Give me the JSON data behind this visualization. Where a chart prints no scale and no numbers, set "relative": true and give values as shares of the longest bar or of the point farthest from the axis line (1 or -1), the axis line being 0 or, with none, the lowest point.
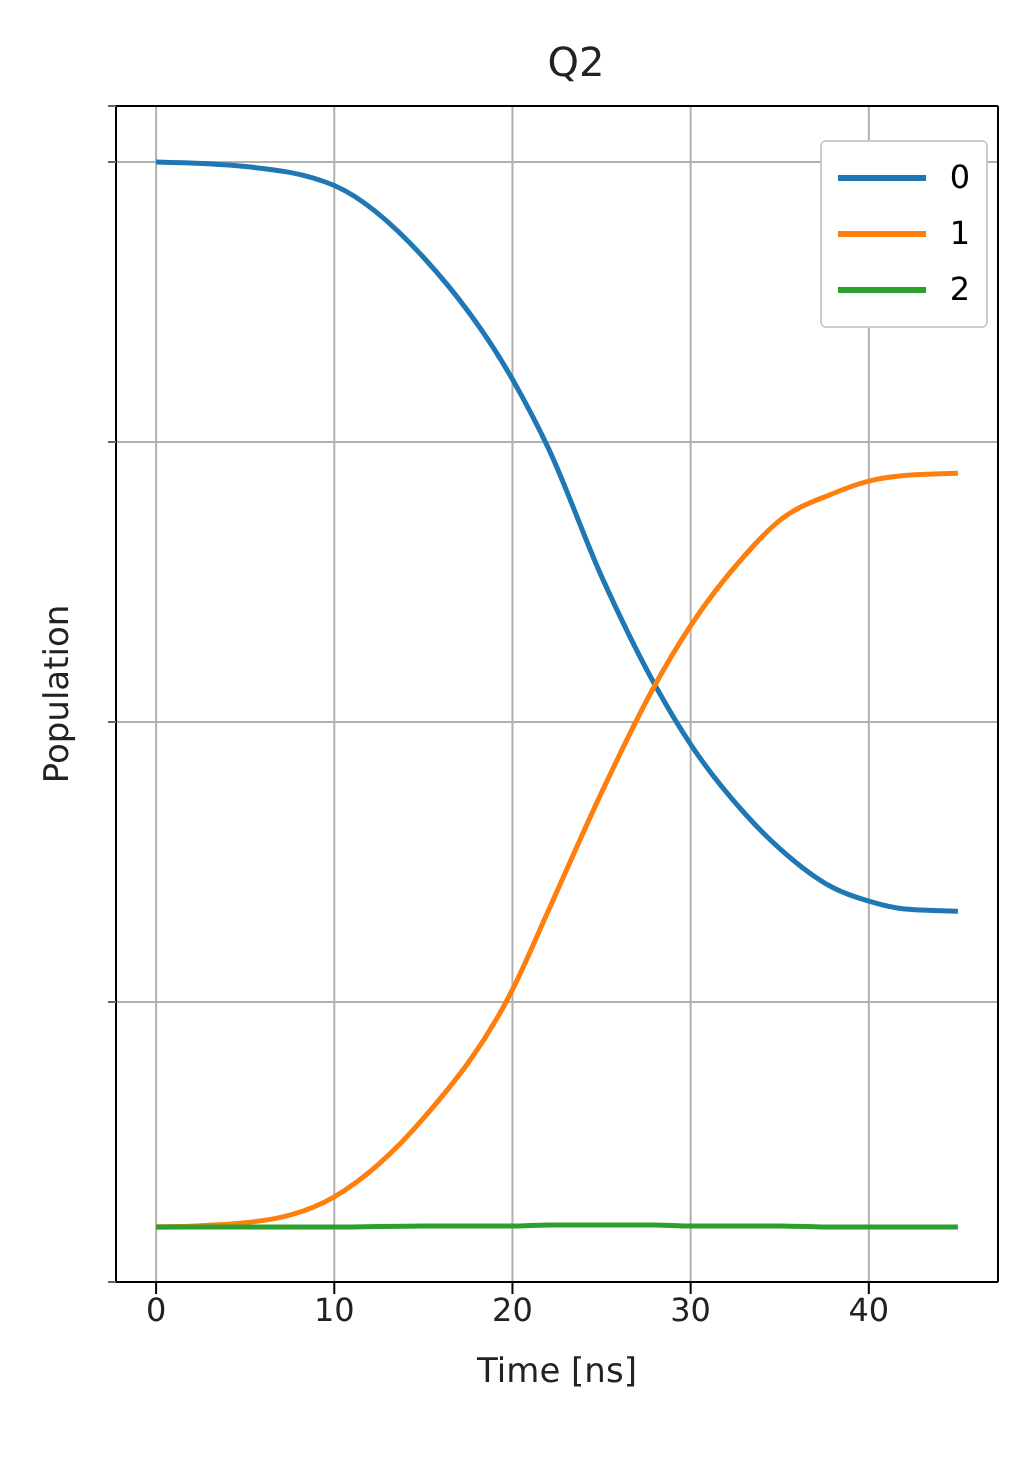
{
  "chart_data": {
    "type": "line",
    "title": "Q2",
    "xlabel": "Time [ns]",
    "ylabel": "Population",
    "relative": true,
    "x": [
      0,
      5,
      10,
      15,
      20,
      22,
      25,
      28,
      30,
      33,
      35,
      38,
      40,
      42,
      45
    ],
    "xlim": [
      -2.25,
      47.25
    ],
    "xticks": [
      0,
      10,
      20,
      30,
      40
    ],
    "series": [
      {
        "name": "0",
        "color": "#1f77b4",
        "values": [
          1.0,
          0.996,
          0.979,
          0.915,
          0.806,
          0.745,
          0.63,
          0.533,
          0.48,
          0.419,
          0.387,
          0.352,
          0.34,
          0.333,
          0.331
        ]
      },
      {
        "name": "1",
        "color": "#ff7f0e",
        "values": [
          0.049,
          0.053,
          0.076,
          0.146,
          0.261,
          0.331,
          0.437,
          0.533,
          0.586,
          0.648,
          0.68,
          0.704,
          0.715,
          0.72,
          0.722
        ]
      },
      {
        "name": "2",
        "color": "#2ca02c",
        "values": [
          0.049,
          0.049,
          0.049,
          0.05,
          0.05,
          0.051,
          0.051,
          0.051,
          0.05,
          0.05,
          0.05,
          0.049,
          0.049,
          0.049,
          0.049
        ]
      }
    ],
    "grid": true,
    "legend": "top right",
    "marker": "none",
    "line_style": "solid"
  }
}
